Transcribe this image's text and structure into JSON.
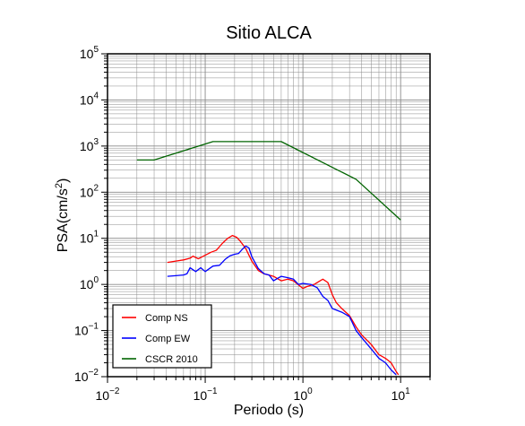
{
  "chart_data": {
    "type": "line",
    "title": "Sitio ALCA",
    "xlabel": "Periodo (s)",
    "ylabel": {
      "base": "PSA(cm/s",
      "sup": "2",
      "end": ")"
    },
    "xscale": "log",
    "yscale": "log",
    "xlim": [
      0.01,
      20
    ],
    "ylim": [
      0.01,
      100000
    ],
    "grid": true,
    "legend_position": "bottom-left",
    "x_ticks": [
      {
        "value": 0.01,
        "base": "10",
        "exp": "−2"
      },
      {
        "value": 0.1,
        "base": "10",
        "exp": "−1"
      },
      {
        "value": 1,
        "base": "10",
        "exp": "0"
      },
      {
        "value": 10,
        "base": "10",
        "exp": "1"
      }
    ],
    "y_ticks": [
      {
        "value": 0.01,
        "base": "10",
        "exp": "−2"
      },
      {
        "value": 0.1,
        "base": "10",
        "exp": "−1"
      },
      {
        "value": 1,
        "base": "10",
        "exp": "0"
      },
      {
        "value": 10,
        "base": "10",
        "exp": "1"
      },
      {
        "value": 100,
        "base": "10",
        "exp": "2"
      },
      {
        "value": 1000,
        "base": "10",
        "exp": "3"
      },
      {
        "value": 10000,
        "base": "10",
        "exp": "4"
      },
      {
        "value": 100000,
        "base": "10",
        "exp": "5"
      }
    ],
    "series": [
      {
        "name": "Comp NS",
        "color": "#ff0000",
        "points": [
          [
            0.041,
            3.0
          ],
          [
            0.05,
            3.2
          ],
          [
            0.06,
            3.4
          ],
          [
            0.07,
            3.7
          ],
          [
            0.075,
            4.1
          ],
          [
            0.085,
            3.6
          ],
          [
            0.1,
            4.3
          ],
          [
            0.115,
            5.0
          ],
          [
            0.13,
            5.5
          ],
          [
            0.15,
            7.8
          ],
          [
            0.17,
            10.0
          ],
          [
            0.19,
            11.5
          ],
          [
            0.21,
            10.5
          ],
          [
            0.23,
            8.5
          ],
          [
            0.26,
            6.0
          ],
          [
            0.3,
            3.2
          ],
          [
            0.35,
            2.0
          ],
          [
            0.4,
            1.7
          ],
          [
            0.5,
            1.5
          ],
          [
            0.6,
            1.2
          ],
          [
            0.7,
            1.3
          ],
          [
            0.8,
            1.2
          ],
          [
            1.0,
            0.82
          ],
          [
            1.1,
            0.9
          ],
          [
            1.3,
            1.0
          ],
          [
            1.5,
            1.2
          ],
          [
            1.6,
            1.3
          ],
          [
            1.8,
            1.1
          ],
          [
            2.0,
            0.6
          ],
          [
            2.2,
            0.4
          ],
          [
            2.5,
            0.3
          ],
          [
            3.0,
            0.21
          ],
          [
            3.5,
            0.12
          ],
          [
            4.0,
            0.08
          ],
          [
            5.0,
            0.05
          ],
          [
            6.0,
            0.03
          ],
          [
            7.0,
            0.025
          ],
          [
            8.0,
            0.02
          ],
          [
            9.0,
            0.013
          ],
          [
            9.5,
            0.011
          ]
        ]
      },
      {
        "name": "Comp EW",
        "color": "#0000ff",
        "points": [
          [
            0.041,
            1.5
          ],
          [
            0.05,
            1.55
          ],
          [
            0.06,
            1.6
          ],
          [
            0.065,
            1.7
          ],
          [
            0.07,
            2.3
          ],
          [
            0.08,
            1.9
          ],
          [
            0.09,
            2.3
          ],
          [
            0.1,
            1.9
          ],
          [
            0.12,
            2.5
          ],
          [
            0.14,
            2.6
          ],
          [
            0.16,
            3.5
          ],
          [
            0.18,
            4.2
          ],
          [
            0.2,
            4.5
          ],
          [
            0.22,
            4.7
          ],
          [
            0.24,
            5.8
          ],
          [
            0.26,
            6.8
          ],
          [
            0.28,
            6.2
          ],
          [
            0.3,
            4.0
          ],
          [
            0.35,
            2.2
          ],
          [
            0.4,
            1.7
          ],
          [
            0.45,
            1.6
          ],
          [
            0.5,
            1.2
          ],
          [
            0.6,
            1.5
          ],
          [
            0.7,
            1.4
          ],
          [
            0.8,
            1.3
          ],
          [
            0.9,
            1.0
          ],
          [
            1.0,
            1.05
          ],
          [
            1.2,
            1.0
          ],
          [
            1.4,
            0.85
          ],
          [
            1.6,
            0.55
          ],
          [
            1.8,
            0.45
          ],
          [
            2.0,
            0.3
          ],
          [
            2.5,
            0.25
          ],
          [
            3.0,
            0.2
          ],
          [
            3.5,
            0.1
          ],
          [
            4.0,
            0.07
          ],
          [
            5.0,
            0.04
          ],
          [
            6.0,
            0.025
          ],
          [
            7.0,
            0.02
          ],
          [
            8.0,
            0.014
          ],
          [
            9.0,
            0.011
          ]
        ]
      },
      {
        "name": "CSCR 2010",
        "color": "#006400",
        "points": [
          [
            0.02,
            500
          ],
          [
            0.03,
            500
          ],
          [
            0.12,
            1250
          ],
          [
            0.6,
            1250
          ],
          [
            3.5,
            190
          ],
          [
            10,
            25
          ]
        ]
      }
    ]
  }
}
